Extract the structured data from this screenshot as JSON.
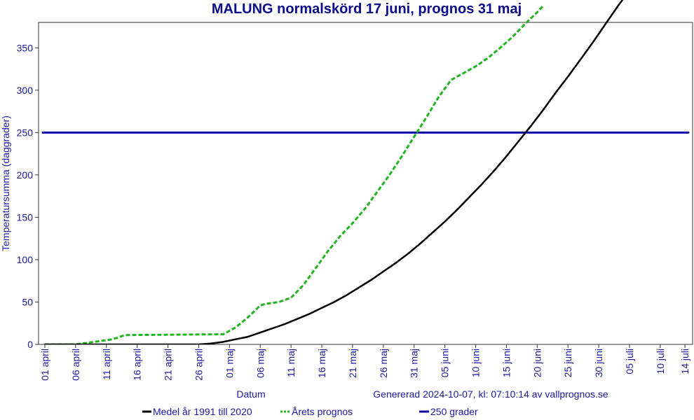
{
  "chart_data": {
    "type": "line",
    "title": "MALUNG normalskörd 17 juni, prognos 31 maj",
    "xlabel": "Datum",
    "ylabel": "Temperatursumma (daggrader)",
    "ylim": [
      0,
      380
    ],
    "y_ticks": [
      0,
      50,
      100,
      150,
      200,
      250,
      300,
      350
    ],
    "x_ticks": [
      "01 april",
      "06 april",
      "11 april",
      "16 april",
      "21 april",
      "26 april",
      "01 maj",
      "06 maj",
      "11 maj",
      "16 maj",
      "21 maj",
      "26 maj",
      "31 maj",
      "05 juni",
      "10 juni",
      "15 juni",
      "20 juni",
      "25 juni",
      "30 juni",
      "05 juli",
      "10 juli",
      "14 juli"
    ],
    "generated_text": "Genererad 2024-10-07, kl: 07:10:14 av vallprognos.se",
    "grid": false,
    "legend_position": "bottom",
    "series": [
      {
        "name": "Medel år 1991 till 2020",
        "color": "#000000",
        "style": "solid",
        "x": [
          "2024-04-01",
          "2024-04-26",
          "2024-04-28",
          "2024-04-30",
          "2024-05-02",
          "2024-05-04",
          "2024-05-06",
          "2024-05-08",
          "2024-05-10",
          "2024-05-12",
          "2024-05-14",
          "2024-05-16",
          "2024-05-18",
          "2024-05-20",
          "2024-05-22",
          "2024-05-24",
          "2024-05-26",
          "2024-05-28",
          "2024-05-30",
          "2024-06-01",
          "2024-06-03",
          "2024-06-05",
          "2024-06-07",
          "2024-06-09",
          "2024-06-11",
          "2024-06-13",
          "2024-06-15",
          "2024-06-17",
          "2024-06-19",
          "2024-06-21",
          "2024-06-23",
          "2024-06-25",
          "2024-06-27",
          "2024-06-29",
          "2024-07-01",
          "2024-07-03",
          "2024-07-04"
        ],
        "values": [
          0,
          0,
          1,
          3,
          6,
          9,
          14,
          19,
          24,
          30,
          36,
          43,
          50,
          58,
          67,
          76,
          86,
          96,
          107,
          119,
          132,
          145,
          159,
          174,
          189,
          205,
          222,
          240,
          258,
          277,
          297,
          316,
          336,
          356,
          377,
          398,
          408
        ]
      },
      {
        "name": "Årets prognos",
        "color": "#22b522",
        "style": "dashed",
        "x": [
          "2024-04-01",
          "2024-04-06",
          "2024-04-08",
          "2024-04-10",
          "2024-04-12",
          "2024-04-14",
          "2024-04-30",
          "2024-05-02",
          "2024-05-04",
          "2024-05-06",
          "2024-05-07",
          "2024-05-09",
          "2024-05-11",
          "2024-05-13",
          "2024-05-15",
          "2024-05-17",
          "2024-05-19",
          "2024-05-21",
          "2024-05-23",
          "2024-05-25",
          "2024-05-27",
          "2024-05-29",
          "2024-05-31",
          "2024-06-02",
          "2024-06-04",
          "2024-06-06",
          "2024-06-08",
          "2024-06-10",
          "2024-06-12",
          "2024-06-14",
          "2024-06-16",
          "2024-06-18",
          "2024-06-20",
          "2024-06-21"
        ],
        "values": [
          0,
          0,
          2,
          4,
          6,
          11,
          12,
          20,
          32,
          46,
          48,
          50,
          55,
          70,
          90,
          110,
          128,
          143,
          160,
          180,
          200,
          222,
          245,
          268,
          292,
          312,
          320,
          328,
          338,
          350,
          363,
          378,
          392,
          400
        ]
      },
      {
        "name": "250 grader",
        "color": "#0a0aa8",
        "style": "solid",
        "x": [
          "2024-04-01",
          "2024-07-14"
        ],
        "values": [
          250,
          250
        ]
      }
    ]
  }
}
